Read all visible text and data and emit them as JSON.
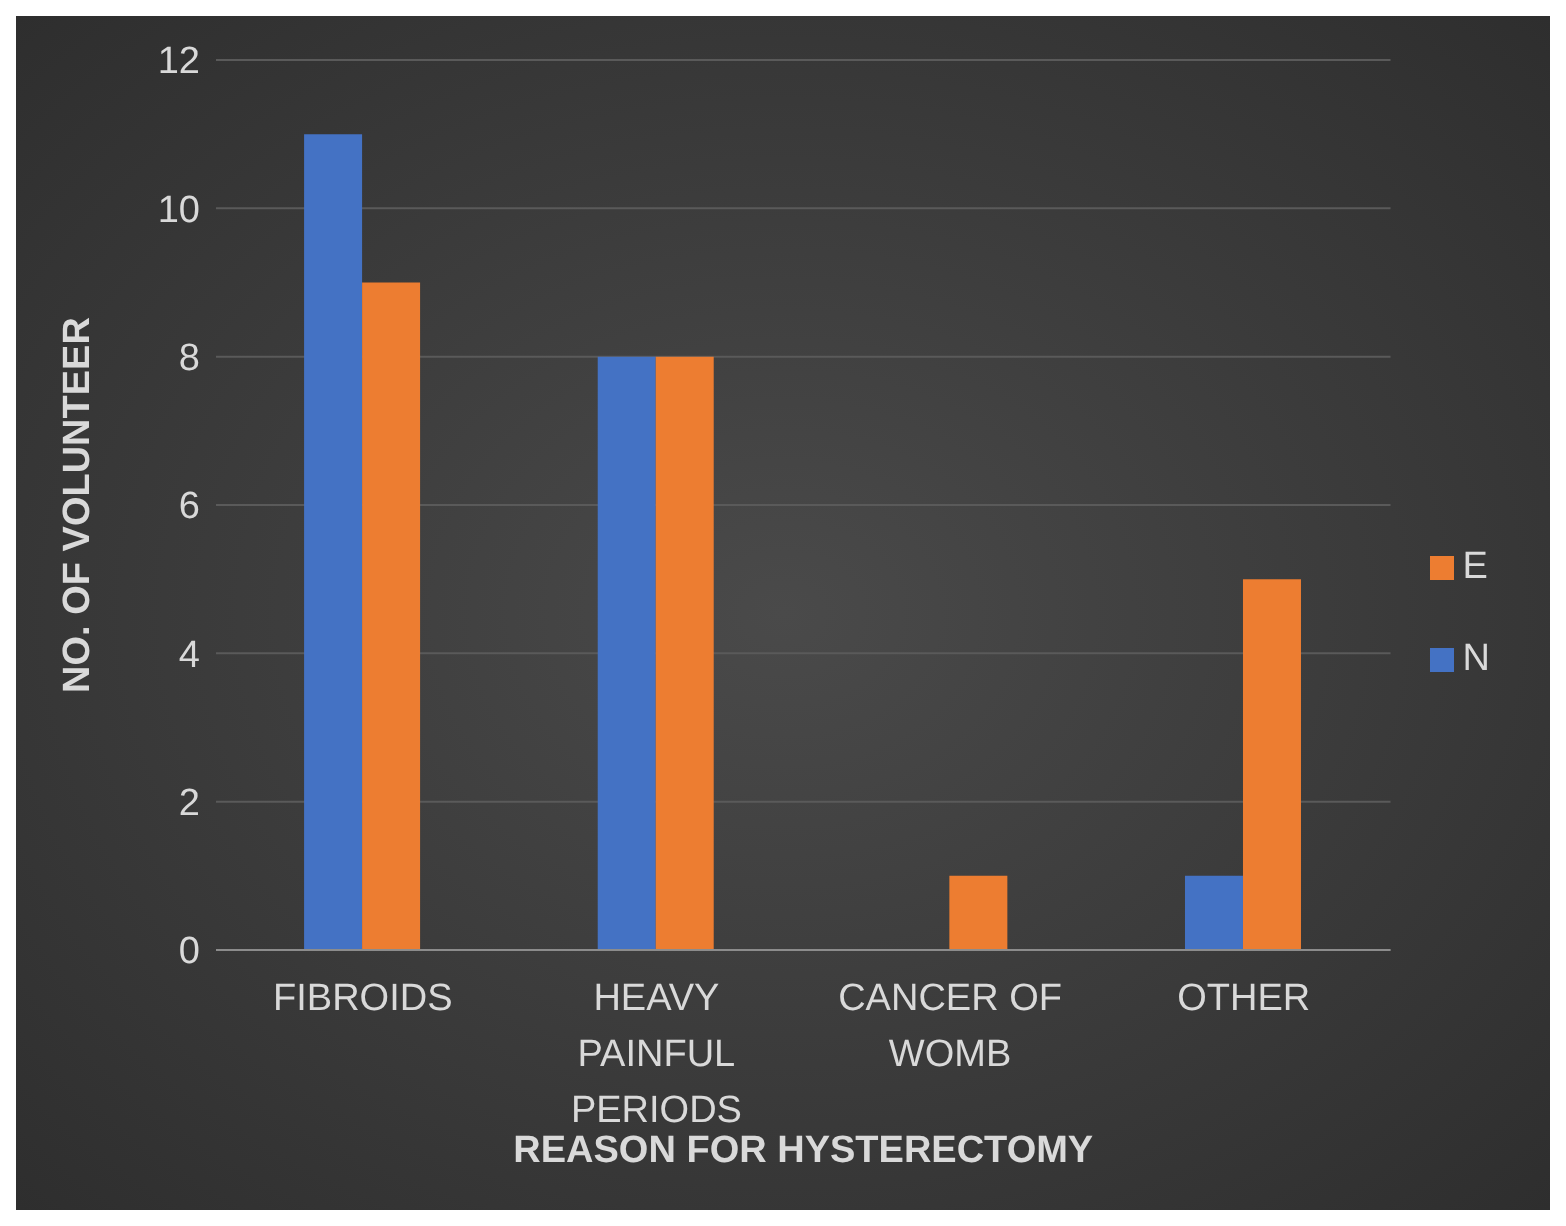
{
  "chart_data": {
    "type": "bar",
    "xlabel": "REASON FOR HYSTERECTOMY",
    "ylabel": "NO. OF VOLUNTEER",
    "categories": [
      "FIBROIDS",
      "HEAVY PAINFUL PERIODS",
      "CANCER OF WOMB",
      "OTHER"
    ],
    "series": [
      {
        "name": "N",
        "color": "#4472c4",
        "values": [
          11,
          8,
          0,
          1
        ]
      },
      {
        "name": "E",
        "color": "#ed7d31",
        "values": [
          9,
          8,
          1,
          5
        ]
      }
    ],
    "ylim": [
      0,
      12
    ],
    "yticks": [
      0,
      2,
      4,
      6,
      8,
      10,
      12
    ],
    "grid": "y",
    "legend": "right"
  }
}
